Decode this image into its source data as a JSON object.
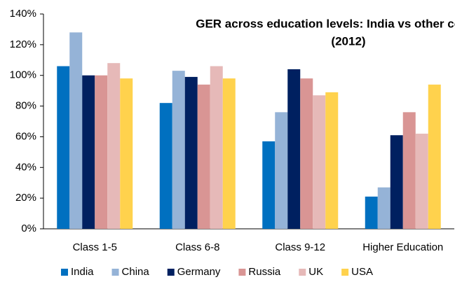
{
  "chart_data": {
    "type": "bar",
    "title": [
      "GER across education levels: India vs other countries",
      "(2012)"
    ],
    "categories": [
      "Class 1-5",
      "Class 6-8",
      "Class 9-12",
      "Higher Education"
    ],
    "series": [
      {
        "name": "India",
        "color": "#0070c0",
        "values": [
          106,
          82,
          57,
          21
        ]
      },
      {
        "name": "China",
        "color": "#95b3d7",
        "values": [
          128,
          103,
          76,
          27
        ]
      },
      {
        "name": "Germany",
        "color": "#002060",
        "values": [
          100,
          99,
          104,
          61
        ]
      },
      {
        "name": "Russia",
        "color": "#d99594",
        "values": [
          100,
          94,
          98,
          76
        ]
      },
      {
        "name": "UK",
        "color": "#e6b9b8",
        "values": [
          108,
          106,
          87,
          62
        ]
      },
      {
        "name": "USA",
        "color": "#ffd24d",
        "values": [
          98,
          98,
          89,
          94
        ]
      }
    ],
    "ylim": [
      0,
      140
    ],
    "yticks": [
      {
        "value": 0,
        "label": "0%"
      },
      {
        "value": 20,
        "label": "20%"
      },
      {
        "value": 40,
        "label": "40%"
      },
      {
        "value": 60,
        "label": "60%"
      },
      {
        "value": 80,
        "label": "80%"
      },
      {
        "value": 100,
        "label": "100%"
      },
      {
        "value": 120,
        "label": "120%"
      },
      {
        "value": 140,
        "label": "140%"
      }
    ],
    "grid": false,
    "legend": "bottom"
  }
}
